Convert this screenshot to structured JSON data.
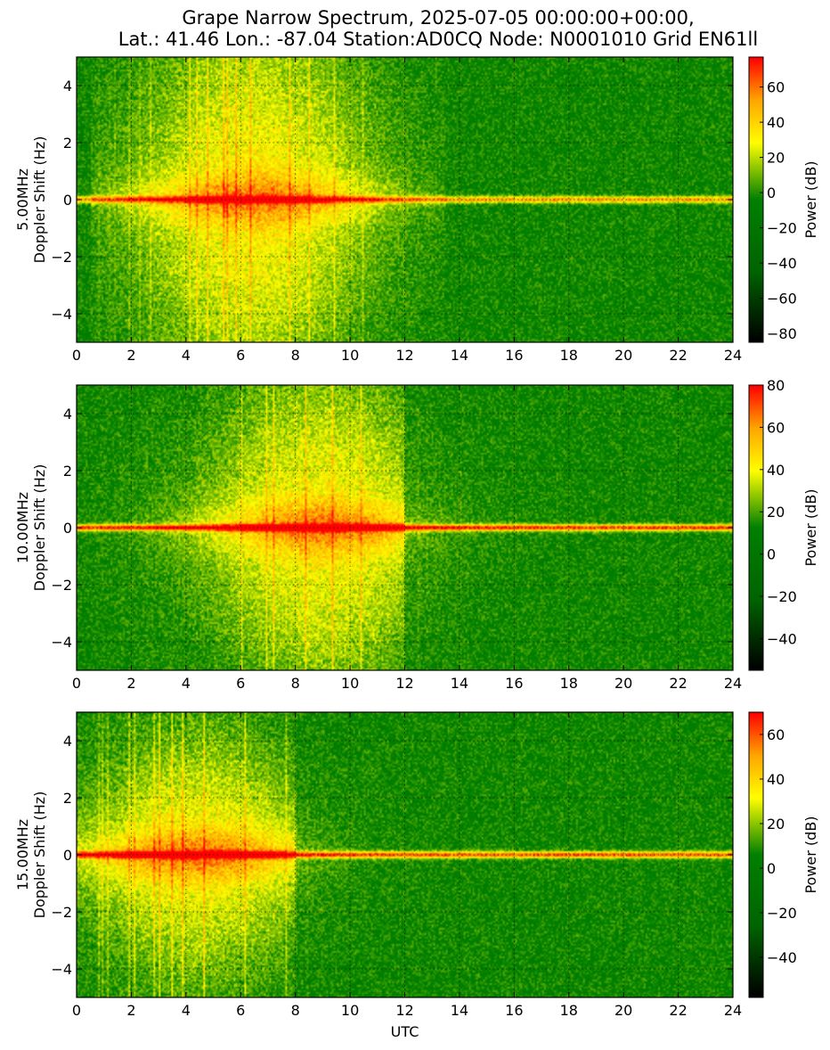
{
  "title_line1": "Grape Narrow Spectrum, 2025-07-05 00:00:00+00:00,",
  "title_line2": "Lat.: 41.46 Lon.: -87.04 Station:AD0CQ Node: N0001010 Grid EN61ll",
  "colors": {
    "colormap": [
      "#000000",
      "#006400",
      "#008000",
      "#ffff00",
      "#ffa500",
      "#ff0000"
    ],
    "grid": "#000000",
    "axes": "#000000"
  },
  "chart_data": [
    {
      "type": "heatmap",
      "frequency_label": "5.00MHz",
      "ylabel": "Doppler Shift (Hz)",
      "xlabel": "",
      "xlim": [
        0,
        24
      ],
      "ylim": [
        -5,
        5
      ],
      "x_ticks": [
        0,
        2,
        4,
        6,
        8,
        10,
        12,
        14,
        16,
        18,
        20,
        22,
        24
      ],
      "y_ticks": [
        -4,
        -2,
        0,
        2,
        4
      ],
      "grid": true,
      "colorbar": {
        "label": "Power (dB)",
        "range": [
          -85,
          77
        ],
        "ticks": [
          -80,
          -60,
          -40,
          -20,
          0,
          20,
          40,
          60
        ]
      },
      "features": {
        "carrier_hz": 0.0,
        "active_utc": [
          0.5,
          13.5
        ],
        "active_peak_utc": 6.5,
        "broadband_halfwidth_hz": 5.0,
        "quiet_after_utc": 14.5,
        "carrier_strength": 0.7
      }
    },
    {
      "type": "heatmap",
      "frequency_label": "10.00MHz",
      "ylabel": "Doppler Shift (Hz)",
      "xlabel": "",
      "xlim": [
        0,
        24
      ],
      "ylim": [
        -5,
        5
      ],
      "x_ticks": [
        0,
        2,
        4,
        6,
        8,
        10,
        12,
        14,
        16,
        18,
        20,
        22,
        24
      ],
      "y_ticks": [
        -4,
        -2,
        0,
        2,
        4
      ],
      "grid": true,
      "colorbar": {
        "label": "Power (dB)",
        "range": [
          -55,
          80
        ],
        "ticks": [
          -40,
          -20,
          0,
          20,
          40,
          60,
          80
        ]
      },
      "features": {
        "carrier_hz": 0.0,
        "active_utc": [
          0.0,
          24.0
        ],
        "active_peak_utc": 9.0,
        "broadband_halfwidth_hz": 4.0,
        "quiet_after_utc": 12.0,
        "carrier_strength": 0.9
      }
    },
    {
      "type": "heatmap",
      "frequency_label": "15.00MHz",
      "ylabel": "Doppler Shift (Hz)",
      "xlabel": "UTC",
      "xlim": [
        0,
        24
      ],
      "ylim": [
        -5,
        5
      ],
      "x_ticks": [
        0,
        2,
        4,
        6,
        8,
        10,
        12,
        14,
        16,
        18,
        20,
        22,
        24
      ],
      "y_ticks": [
        -4,
        -2,
        0,
        2,
        4
      ],
      "grid": true,
      "colorbar": {
        "label": "Power (dB)",
        "range": [
          -58,
          70
        ],
        "ticks": [
          -40,
          -20,
          0,
          20,
          40,
          60
        ]
      },
      "features": {
        "carrier_hz": 0.0,
        "active_utc": [
          0.0,
          24.0
        ],
        "active_peak_utc": 4.5,
        "broadband_halfwidth_hz": 3.0,
        "quiet_after_utc": 8.0,
        "carrier_strength": 0.85
      }
    }
  ]
}
